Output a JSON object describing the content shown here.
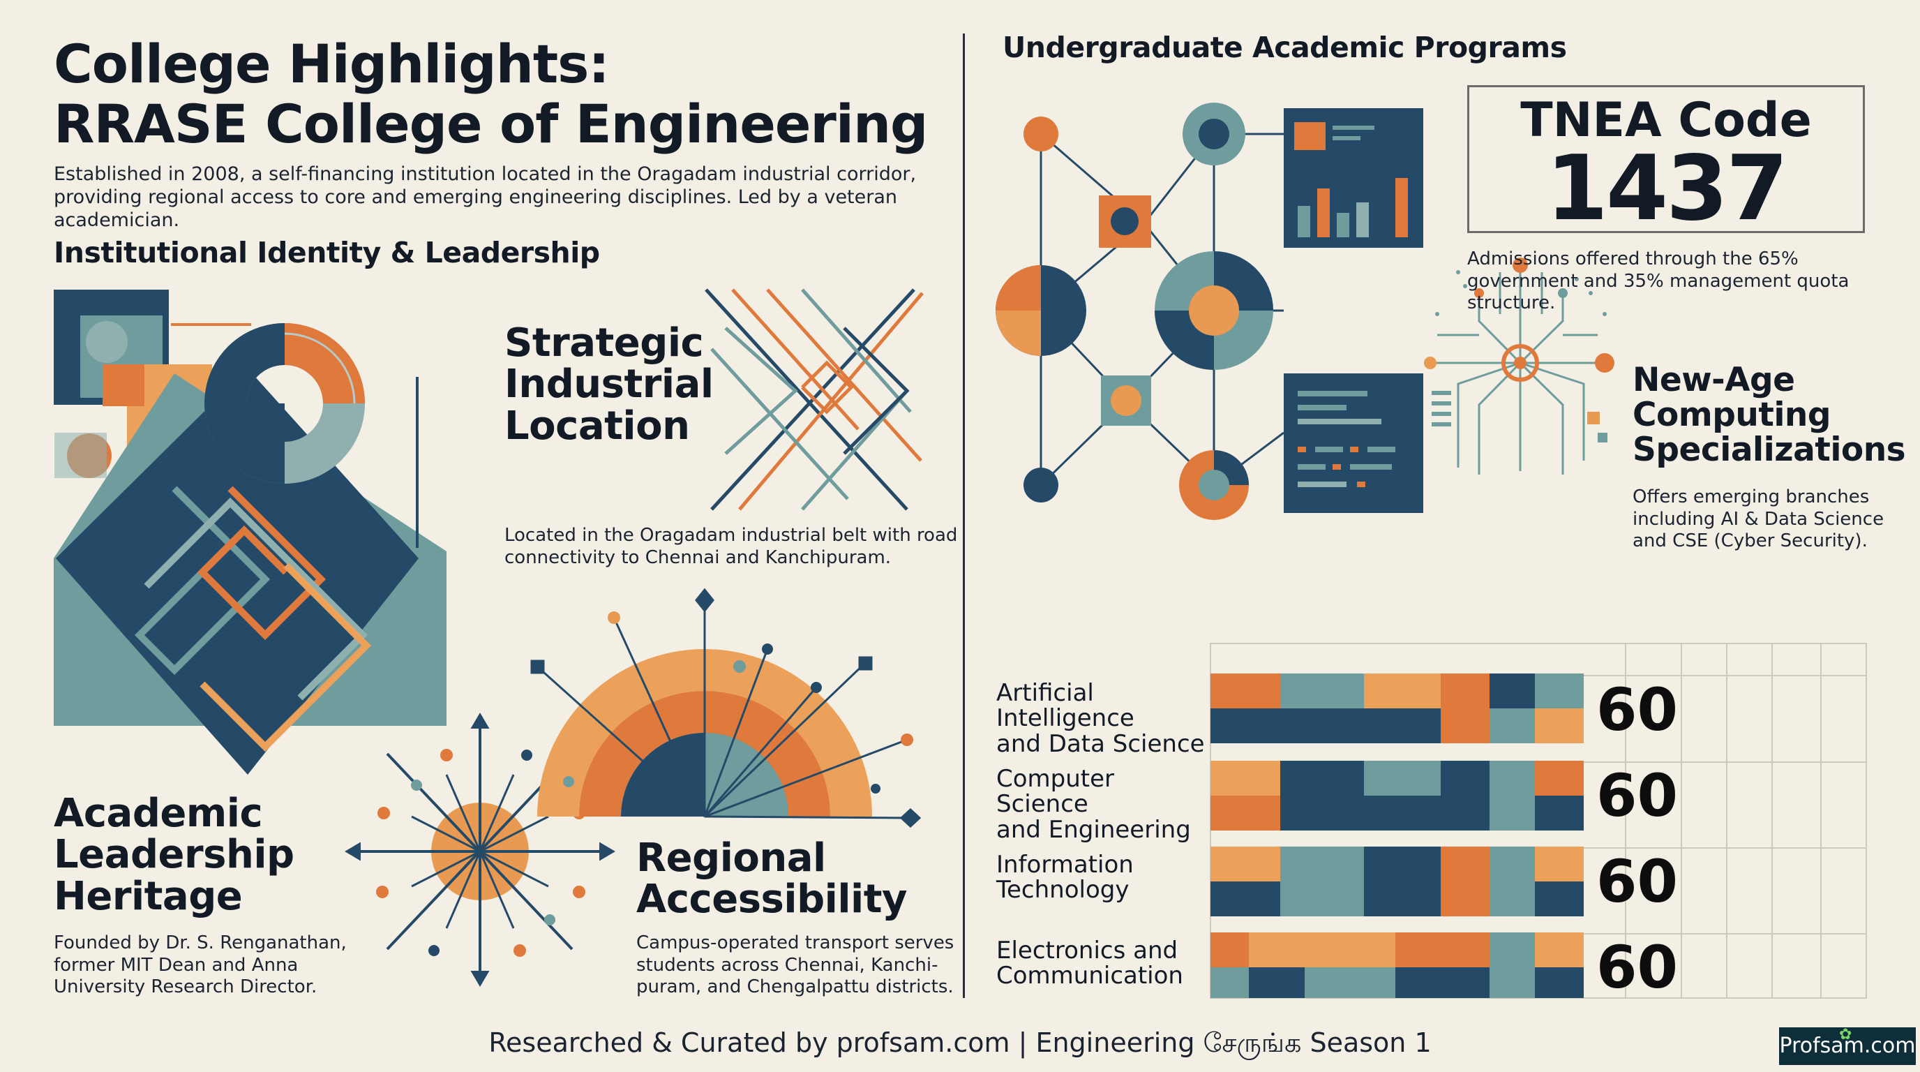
{
  "header": {
    "title_line1": "College Highlights:",
    "title_line2": "RRASE College of Engineering",
    "intro": "Established in 2008, a self-financing institution located in the Oragadam industrial corridor, providing regional access to core and emerging engineering disciplines. Led by a veteran academician."
  },
  "left_section": {
    "heading": "Institutional Identity & Leadership",
    "features": [
      {
        "title_lines": [
          "Strategic",
          "Industrial",
          "Location"
        ],
        "body_lines": [
          "Located in the Oragadam industrial belt with road",
          "connectivity to Chennai and Kanchipuram."
        ]
      },
      {
        "title_lines": [
          "Academic",
          "Leadership",
          "Heritage"
        ],
        "body_lines": [
          "Founded by Dr. S. Renganathan,",
          "former MIT Dean and Anna",
          "University Research Director."
        ]
      },
      {
        "title_lines": [
          "Regional",
          "Accessibility"
        ],
        "body_lines": [
          "Campus-operated transport serves",
          "students across Chennai, Kanchi-",
          "puram, and Chengalpattu districts."
        ]
      }
    ]
  },
  "right_section": {
    "heading": "Undergraduate Academic Programs",
    "tnea": {
      "label": "TNEA Code",
      "code": "1437",
      "note_lines": [
        "Admissions offered through the 65%",
        "government and 35% management quota",
        "structure."
      ]
    },
    "specializations": {
      "title_lines": [
        "New-Age",
        "Computing",
        "Specializations"
      ],
      "body_lines": [
        "Offers emerging branches",
        "including AI & Data Science",
        "and CSE (Cyber Security)."
      ]
    },
    "programs": [
      {
        "name_lines": [
          "Artificial Intelligence",
          "and Data Science"
        ],
        "intake": "60"
      },
      {
        "name_lines": [
          "Computer Science",
          "and Engineering"
        ],
        "intake": "60"
      },
      {
        "name_lines": [
          "Information",
          "Technology"
        ],
        "intake": "60"
      },
      {
        "name_lines": [
          "Electronics and",
          "Communication"
        ],
        "intake": "60"
      }
    ]
  },
  "footer": {
    "credit": "Researched & Curated by profsam.com | Engineering சேருங்க Season 1",
    "brand": "Profsam.com"
  },
  "palette": {
    "navy": "#244a68",
    "teal": "#6f9c9d",
    "orange": "#e07a3c",
    "light_orange": "#eba15a",
    "cream": "#f3efe5",
    "ink": "#17202d"
  }
}
